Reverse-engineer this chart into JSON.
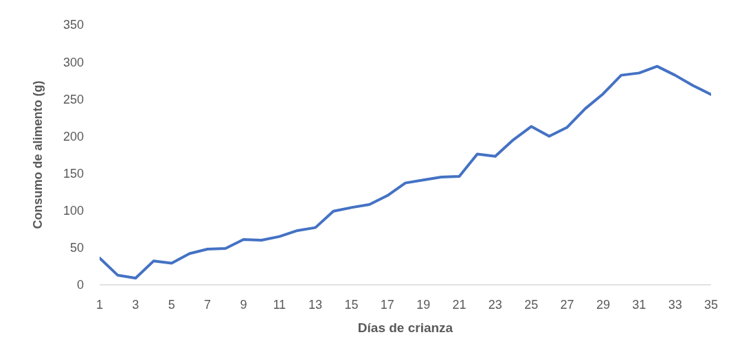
{
  "chart_data": {
    "type": "line",
    "xlabel": "Días de crianza",
    "ylabel": "Consumo de alimento (g)",
    "x": [
      1,
      2,
      3,
      4,
      5,
      6,
      7,
      8,
      9,
      10,
      11,
      12,
      13,
      14,
      15,
      16,
      17,
      18,
      19,
      20,
      21,
      22,
      23,
      24,
      25,
      26,
      27,
      28,
      29,
      30,
      31,
      32,
      33,
      34,
      35
    ],
    "values": [
      36,
      13,
      9,
      32,
      29,
      42,
      48,
      49,
      61,
      60,
      65,
      73,
      77,
      99,
      104,
      108,
      120,
      137,
      141,
      145,
      146,
      176,
      173,
      195,
      213,
      200,
      212,
      237,
      257,
      282,
      285,
      294,
      282,
      268,
      256
    ],
    "color": "#4472c4",
    "xlim": [
      1,
      35
    ],
    "xticks": [
      1,
      3,
      5,
      7,
      9,
      11,
      13,
      15,
      17,
      19,
      21,
      23,
      25,
      27,
      29,
      31,
      33,
      35
    ],
    "ylim": [
      0,
      350
    ],
    "yticks": [
      0,
      50,
      100,
      150,
      200,
      250,
      300,
      350
    ],
    "marker": "none",
    "line_style": "solid"
  }
}
